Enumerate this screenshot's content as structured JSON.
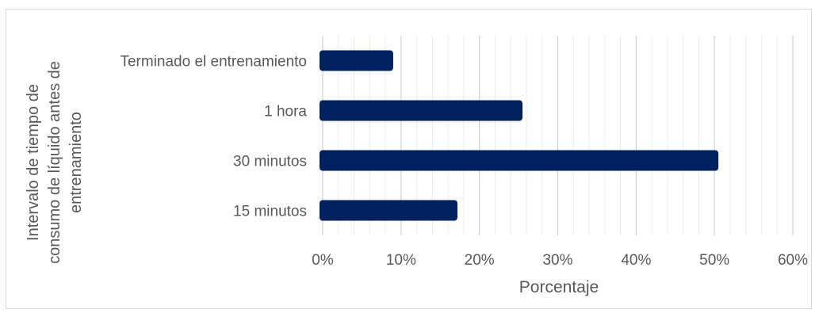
{
  "chart_data": {
    "type": "bar",
    "orientation": "horizontal",
    "categories": [
      "Terminado el entrenamiento",
      "1 hora",
      "30 minutos",
      "15 minutos"
    ],
    "values": [
      9,
      25.5,
      50.5,
      17.2
    ],
    "value_unit": "%",
    "xlabel": "Porcentaje",
    "ylabel_lines": [
      "Intervalo de tiempo de",
      "consumo de líquido antes de",
      "entrenamiento"
    ],
    "xlim": [
      0,
      60
    ],
    "xticks": [
      "0%",
      "10%",
      "20%",
      "30%",
      "40%",
      "50%",
      "60%"
    ],
    "grid": "vertical major and minor",
    "bar_color": "#002060",
    "legend": "none"
  }
}
